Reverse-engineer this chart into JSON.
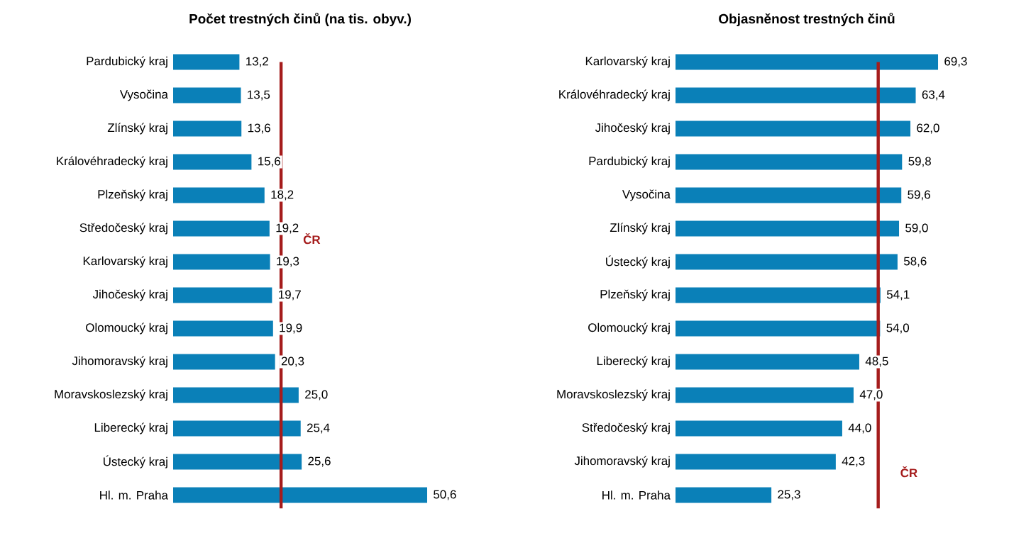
{
  "chart_data": [
    {
      "type": "bar",
      "orientation": "horizontal",
      "title": "Počet trestných činů (na tis. obyv.)",
      "categories": [
        "Pardubický kraj",
        "Vysočina",
        "Zlínský kraj",
        "Královéhradecký kraj",
        "Plzeňský kraj",
        "Středočeský kraj",
        "Karlovarský kraj",
        "Jihočeský kraj",
        "Olomoucký kraj",
        "Jihomoravský kraj",
        "Moravskoslezský kraj",
        "Liberecký kraj",
        "Ústecký kraj",
        "Hl. m. Praha"
      ],
      "values": [
        13.2,
        13.5,
        13.6,
        15.6,
        18.2,
        19.2,
        19.3,
        19.7,
        19.9,
        20.3,
        25.0,
        25.4,
        25.6,
        50.6
      ],
      "value_labels": [
        "13,2",
        "13,5",
        "13,6",
        "15,6",
        "18,2",
        "19,2",
        "19,3",
        "19,7",
        "19,9",
        "20,3",
        "25,0",
        "25,4",
        "25,6",
        "50,6"
      ],
      "color": "#0a80b8",
      "tick_labels": "y",
      "ref_lines": [
        {
          "axis": "x",
          "value": 21.5,
          "label": "ČR",
          "color": "#a51c1c"
        }
      ]
    },
    {
      "type": "bar",
      "orientation": "horizontal",
      "title": "Objasněnost trestných činů",
      "categories": [
        "Karlovarský kraj",
        "Královéhradecký kraj",
        "Jihočeský kraj",
        "Pardubický kraj",
        "Vysočina",
        "Zlínský kraj",
        "Ústecký kraj",
        "Plzeňský kraj",
        "Olomoucký kraj",
        "Liberecký kraj",
        "Moravskoslezský kraj",
        "Středočeský kraj",
        "Jihomoravský kraj",
        "Hl. m. Praha"
      ],
      "values": [
        69.3,
        63.4,
        62.0,
        59.8,
        59.6,
        59.0,
        58.6,
        54.1,
        54.0,
        48.5,
        47.0,
        44.0,
        42.3,
        25.3
      ],
      "value_labels": [
        "69,3",
        "63,4",
        "62,0",
        "59,8",
        "59,6",
        "59,0",
        "58,6",
        "54,1",
        "54,0",
        "48,5",
        "47,0",
        "44,0",
        "42,3",
        "25,3"
      ],
      "color": "#0a80b8",
      "tick_labels": "y",
      "ref_lines": [
        {
          "axis": "x",
          "value": 53.5,
          "label": "ČR",
          "color": "#a51c1c"
        }
      ]
    }
  ]
}
